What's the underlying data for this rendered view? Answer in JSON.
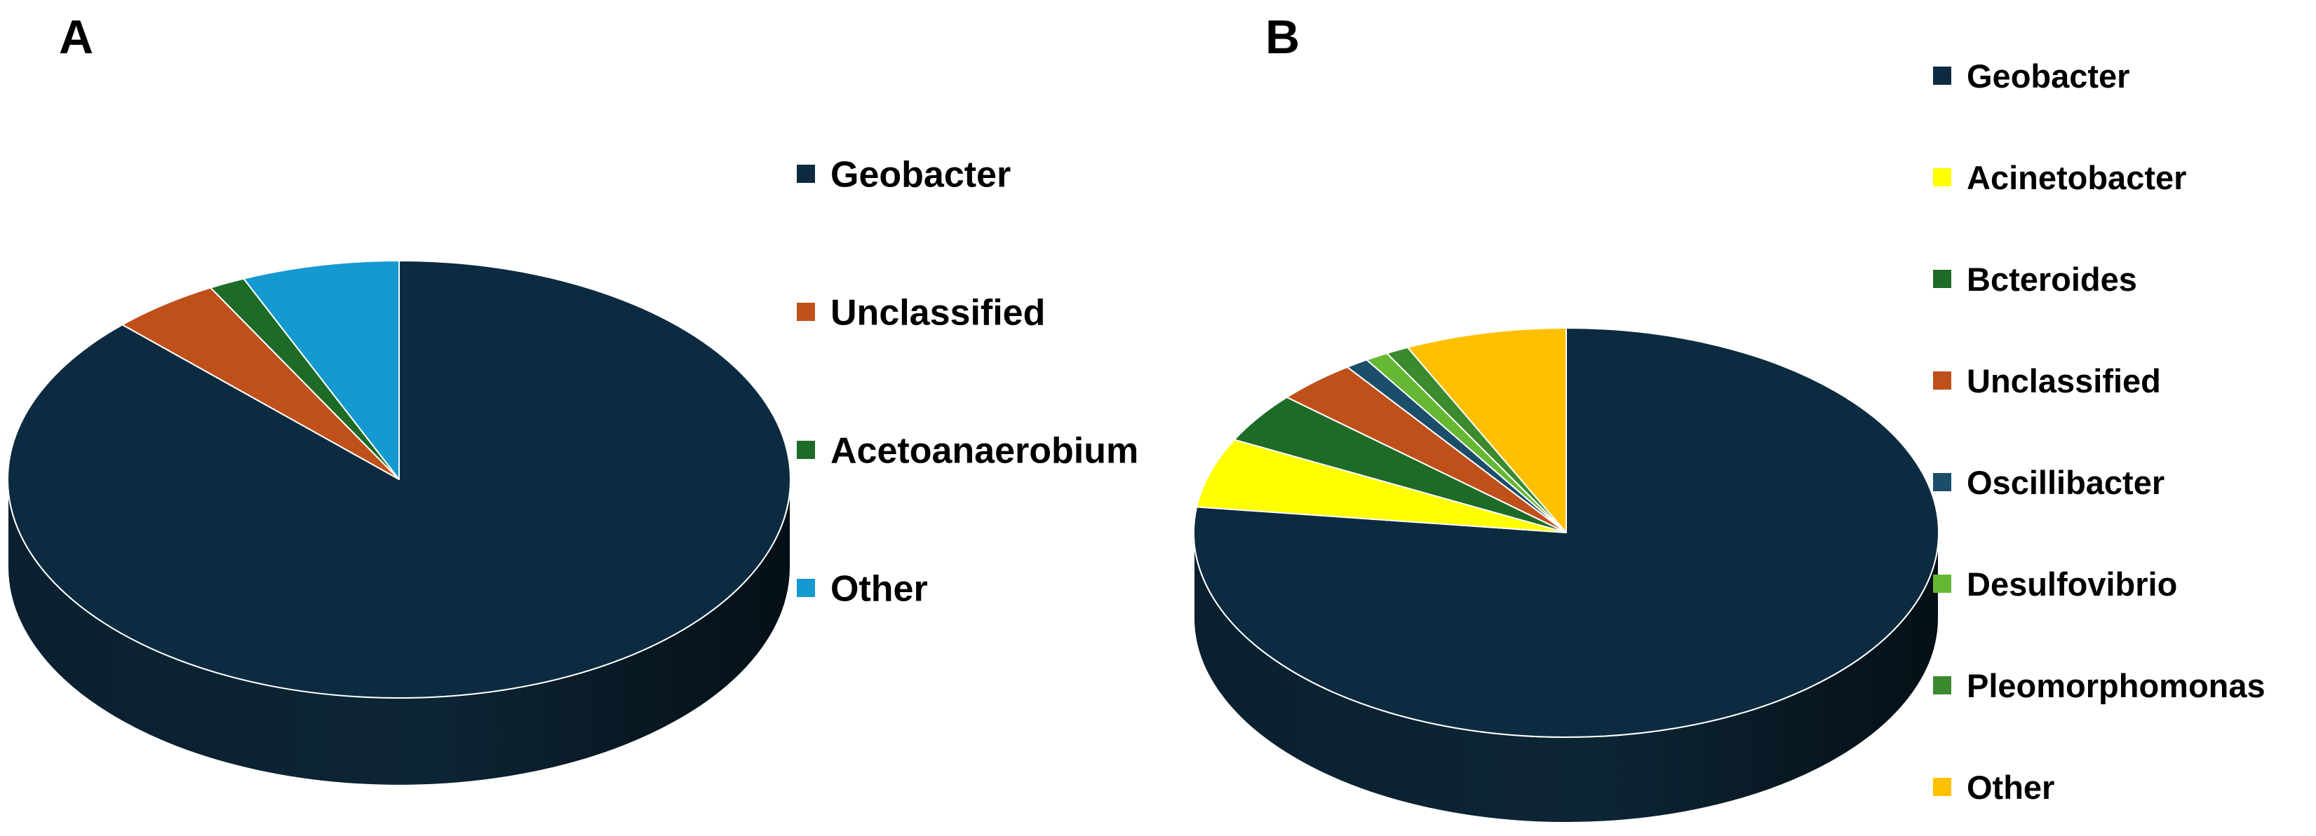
{
  "panels": [
    {
      "letter": "A"
    },
    {
      "letter": "B"
    }
  ],
  "chart_data": [
    {
      "type": "pie",
      "panel": "A",
      "style": "3d",
      "title": "",
      "legend_position": "right",
      "slices": [
        {
          "label": "Geobacter",
          "value": 87.5,
          "color": "#0d2b40"
        },
        {
          "label": "Unclassified",
          "value": 4.5,
          "color": "#c0501a"
        },
        {
          "label": "Acetoanaerobium",
          "value": 1.5,
          "color": "#1e6b27"
        },
        {
          "label": "Other",
          "value": 6.5,
          "color": "#1499d0"
        }
      ]
    },
    {
      "type": "pie",
      "panel": "B",
      "style": "3d",
      "title": "",
      "legend_position": "right",
      "slices": [
        {
          "label": "Geobacter",
          "value": 77.0,
          "color": "#0d2b40"
        },
        {
          "label": "Acinetobacter",
          "value": 5.5,
          "color": "#ffff00"
        },
        {
          "label": "Bcteroides",
          "value": 4.0,
          "color": "#1e6b27"
        },
        {
          "label": "Unclassified",
          "value": 3.5,
          "color": "#c0501a"
        },
        {
          "label": "Oscillibacter",
          "value": 1.0,
          "color": "#1a4e6b"
        },
        {
          "label": "Desulfovibrio",
          "value": 1.0,
          "color": "#66b832"
        },
        {
          "label": "Pleomorphomonas",
          "value": 1.0,
          "color": "#3b8a2e"
        },
        {
          "label": "Other",
          "value": 7.0,
          "color": "#ffc000"
        }
      ]
    }
  ]
}
